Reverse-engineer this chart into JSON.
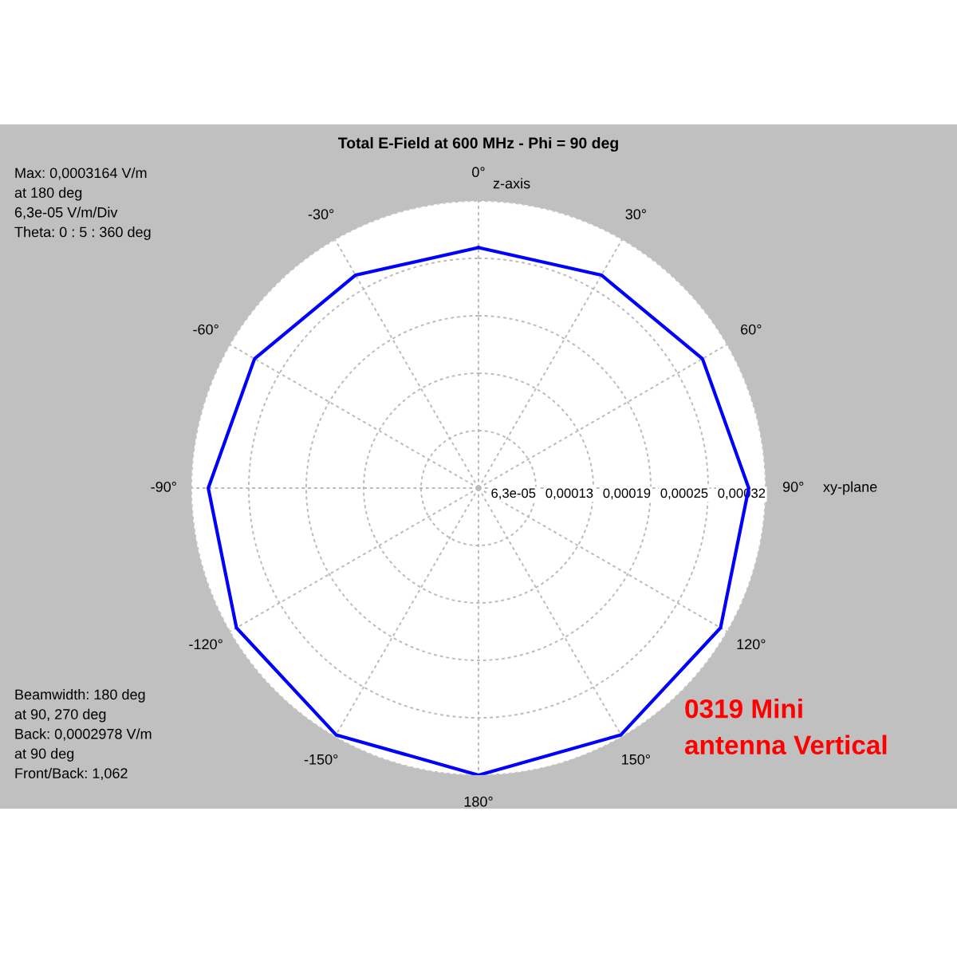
{
  "chart_data": {
    "type": "radar",
    "title": "Total E-Field at 600 MHz - Phi = 90 deg",
    "categories": [
      "0°",
      "30°",
      "60°",
      "90°",
      "120°",
      "150°",
      "180°",
      "-150°",
      "-120°",
      "-90°",
      "-60°",
      "-30°"
    ],
    "series": [
      {
        "color": "#0000ff",
        "values": [
          0.000265,
          0.000271,
          0.000285,
          0.0002978,
          0.000308,
          0.000314,
          0.0003164,
          0.000314,
          0.000308,
          0.0002978,
          0.000285,
          0.000271
        ]
      }
    ],
    "ylim": [
      0,
      0.0003164
    ],
    "yticks": [
      {
        "value": 6.33e-05,
        "label": "6,3e-05"
      },
      {
        "value": 0.0001266,
        "label": "0,00013"
      },
      {
        "value": 0.0001899,
        "label": "0,00019"
      },
      {
        "value": 0.0002532,
        "label": "0,00025"
      },
      {
        "value": 0.0003164,
        "label": "0,00032"
      }
    ],
    "grid": true,
    "annotations": [
      "z-axis",
      "xy-plane",
      "Max: 0,0003164 V/m\nat 180 deg\n6,3e-05 V/m/Div\nTheta: 0 : 5 : 360 deg",
      "Beamwidth: 180 deg\nat 90, 270 deg\nBack: 0,0002978 V/m\nat 90 deg\nFront/Back: 1,062",
      "0319 Mini\nantenna Vertical"
    ]
  }
}
